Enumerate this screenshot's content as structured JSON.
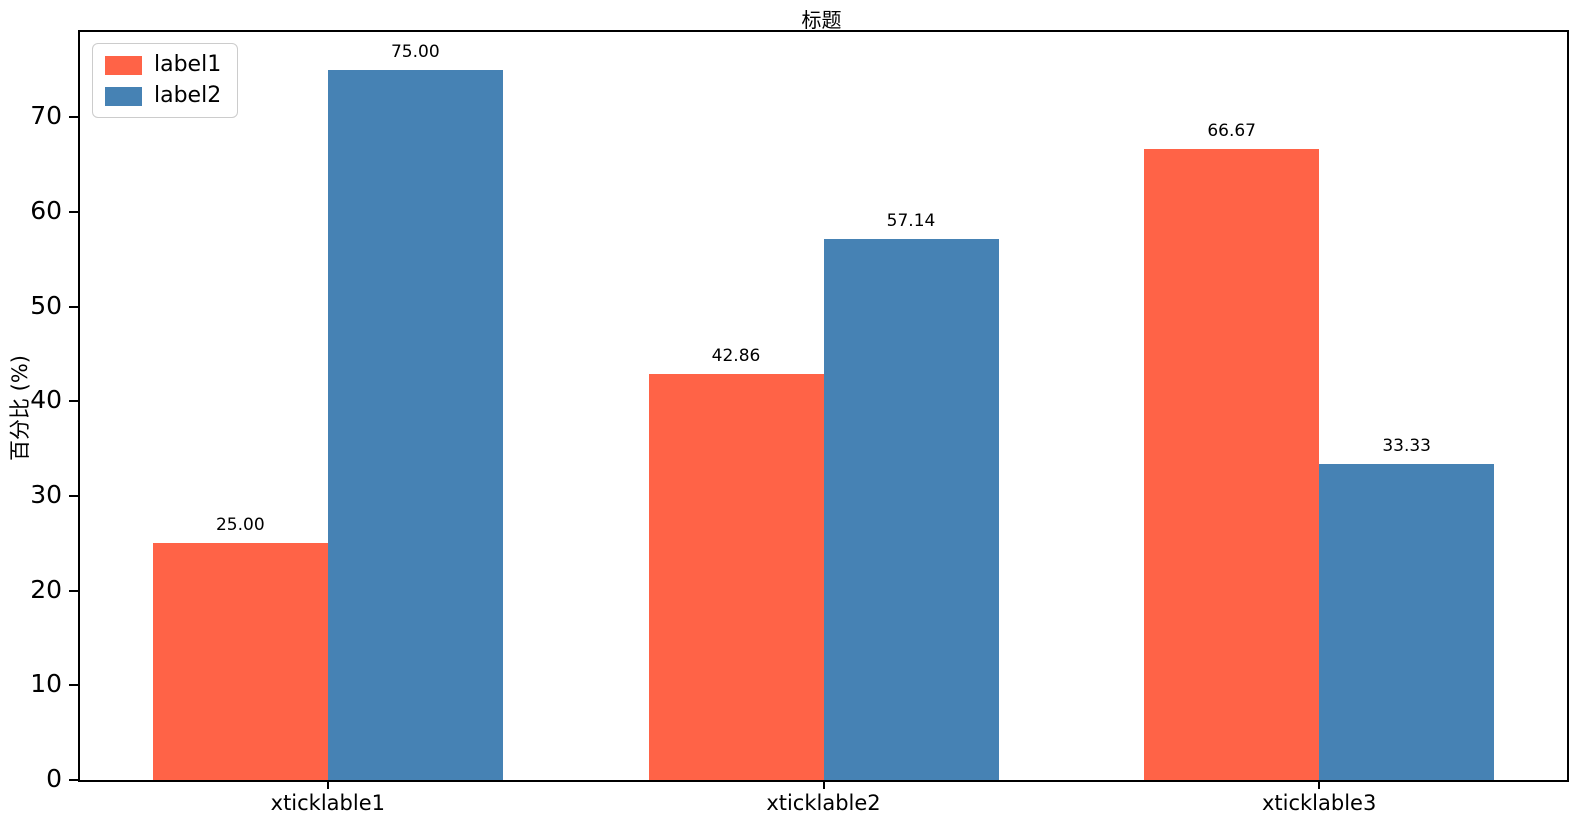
{
  "chart_data": {
    "type": "bar",
    "title": "标题",
    "xlabel": "",
    "ylabel": "百分比 (%)",
    "categories": [
      "xticklable1",
      "xticklable2",
      "xticklable3"
    ],
    "series": [
      {
        "name": "label1",
        "color": "#ff6347",
        "values": [
          25.0,
          42.86,
          66.67
        ],
        "value_labels": [
          "25.00",
          "42.86",
          "66.67"
        ]
      },
      {
        "name": "label2",
        "color": "#4682b4",
        "values": [
          75.0,
          57.14,
          33.33
        ],
        "value_labels": [
          "75.00",
          "57.14",
          "33.33"
        ]
      }
    ],
    "yticks": [
      0,
      10,
      20,
      30,
      40,
      50,
      60,
      70
    ],
    "ylim": [
      0,
      79
    ],
    "grid": false,
    "legend_position": "upper left",
    "bar_value_labels_shown": true
  }
}
